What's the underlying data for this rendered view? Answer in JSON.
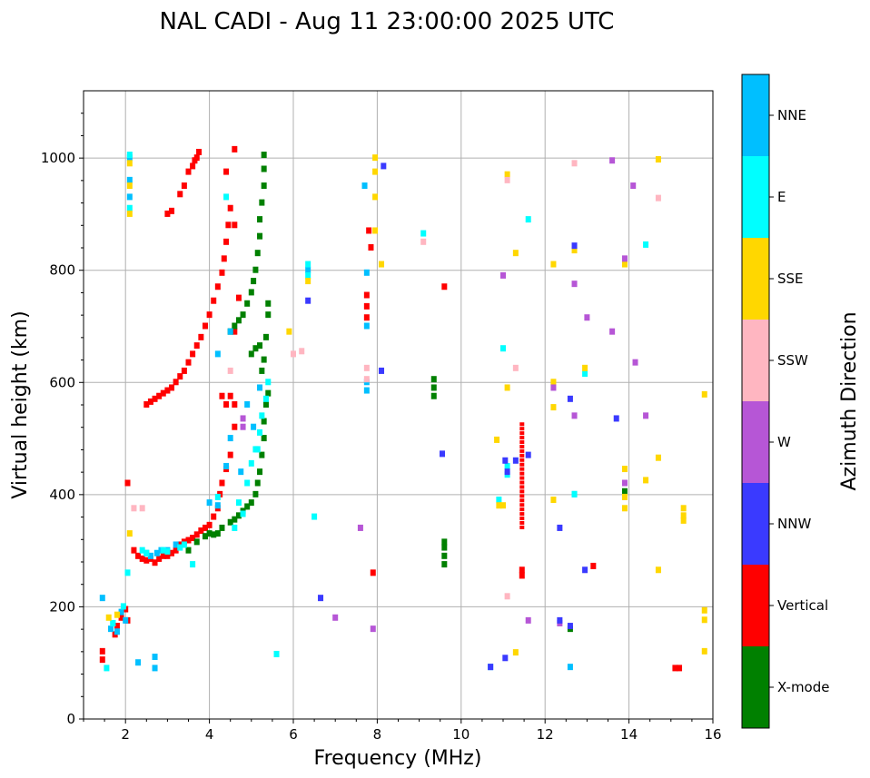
{
  "chart_data": {
    "type": "scatter",
    "title": "NAL CADI - Aug 11 23:00:00 2025 UTC",
    "xlabel": "Frequency (MHz)",
    "ylabel": "Virtual height (km)",
    "xlim": [
      1,
      16
    ],
    "ylim": [
      0,
      1120
    ],
    "xticks": [
      2,
      4,
      6,
      8,
      10,
      12,
      14,
      16
    ],
    "yticks": [
      0,
      200,
      400,
      600,
      800,
      1000
    ],
    "grid": true,
    "colorbar": {
      "label": "Azimuth Direction",
      "categories": [
        {
          "name": "X-mode",
          "color": "#008000"
        },
        {
          "name": "Vertical",
          "color": "#ff0000"
        },
        {
          "name": "NNW",
          "color": "#3a3aff"
        },
        {
          "name": "W",
          "color": "#b656d6"
        },
        {
          "name": "SSW",
          "color": "#ffb6c1"
        },
        {
          "name": "SSE",
          "color": "#ffd700"
        },
        {
          "name": "E",
          "color": "#00ffff"
        },
        {
          "name": "NNE",
          "color": "#00bfff"
        }
      ]
    },
    "series": [
      {
        "name": "Vertical",
        "points": [
          [
            1.45,
            120
          ],
          [
            1.45,
            105
          ],
          [
            1.75,
            150
          ],
          [
            1.8,
            165
          ],
          [
            1.9,
            180
          ],
          [
            2.0,
            195
          ],
          [
            2.05,
            175
          ],
          [
            2.2,
            300
          ],
          [
            2.3,
            290
          ],
          [
            2.4,
            285
          ],
          [
            2.5,
            282
          ],
          [
            2.6,
            285
          ],
          [
            2.7,
            278
          ],
          [
            2.8,
            285
          ],
          [
            2.9,
            290
          ],
          [
            3.0,
            290
          ],
          [
            3.1,
            295
          ],
          [
            3.2,
            300
          ],
          [
            3.3,
            310
          ],
          [
            3.4,
            315
          ],
          [
            3.5,
            318
          ],
          [
            3.6,
            322
          ],
          [
            3.7,
            328
          ],
          [
            3.8,
            335
          ],
          [
            3.9,
            340
          ],
          [
            4.0,
            345
          ],
          [
            4.1,
            360
          ],
          [
            4.2,
            375
          ],
          [
            4.25,
            400
          ],
          [
            4.3,
            420
          ],
          [
            4.4,
            445
          ],
          [
            4.5,
            470
          ],
          [
            4.4,
            560
          ],
          [
            4.6,
            560
          ],
          [
            4.3,
            575
          ],
          [
            4.5,
            575
          ],
          [
            2.5,
            560
          ],
          [
            2.6,
            565
          ],
          [
            2.7,
            570
          ],
          [
            2.8,
            575
          ],
          [
            2.9,
            580
          ],
          [
            3.0,
            585
          ],
          [
            3.1,
            590
          ],
          [
            3.2,
            600
          ],
          [
            3.3,
            610
          ],
          [
            3.4,
            620
          ],
          [
            3.5,
            635
          ],
          [
            3.6,
            650
          ],
          [
            3.7,
            665
          ],
          [
            3.8,
            680
          ],
          [
            3.9,
            700
          ],
          [
            4.0,
            720
          ],
          [
            4.1,
            745
          ],
          [
            4.2,
            770
          ],
          [
            4.3,
            795
          ],
          [
            4.35,
            820
          ],
          [
            4.4,
            850
          ],
          [
            4.45,
            880
          ],
          [
            4.5,
            910
          ],
          [
            4.4,
            975
          ],
          [
            3.0,
            900
          ],
          [
            3.1,
            905
          ],
          [
            3.3,
            935
          ],
          [
            3.4,
            950
          ],
          [
            3.5,
            975
          ],
          [
            3.6,
            985
          ],
          [
            3.65,
            995
          ],
          [
            3.7,
            1000
          ],
          [
            3.75,
            1010
          ],
          [
            4.6,
            1015
          ],
          [
            4.6,
            520
          ],
          [
            4.6,
            690
          ],
          [
            4.7,
            750
          ],
          [
            4.6,
            880
          ],
          [
            7.75,
            715
          ],
          [
            7.75,
            735
          ],
          [
            7.75,
            755
          ],
          [
            7.8,
            870
          ],
          [
            7.85,
            840
          ],
          [
            7.9,
            260
          ],
          [
            9.6,
            770
          ],
          [
            11.45,
            255
          ],
          [
            11.45,
            265
          ],
          [
            15.1,
            90
          ],
          [
            15.2,
            90
          ],
          [
            13.15,
            272
          ],
          [
            2.05,
            420
          ]
        ]
      },
      {
        "name": "X-mode",
        "points": [
          [
            3.5,
            300
          ],
          [
            3.7,
            315
          ],
          [
            3.9,
            325
          ],
          [
            4.0,
            330
          ],
          [
            4.1,
            328
          ],
          [
            4.2,
            330
          ],
          [
            4.3,
            340
          ],
          [
            4.5,
            350
          ],
          [
            4.6,
            355
          ],
          [
            4.7,
            362
          ],
          [
            4.8,
            370
          ],
          [
            4.9,
            378
          ],
          [
            5.0,
            385
          ],
          [
            5.1,
            400
          ],
          [
            5.15,
            420
          ],
          [
            5.2,
            440
          ],
          [
            5.25,
            470
          ],
          [
            5.3,
            500
          ],
          [
            5.3,
            530
          ],
          [
            5.35,
            560
          ],
          [
            5.4,
            580
          ],
          [
            5.25,
            620
          ],
          [
            5.3,
            640
          ],
          [
            5.35,
            680
          ],
          [
            5.0,
            650
          ],
          [
            5.1,
            660
          ],
          [
            5.2,
            665
          ],
          [
            4.5,
            690
          ],
          [
            4.6,
            700
          ],
          [
            4.7,
            710
          ],
          [
            4.8,
            720
          ],
          [
            4.9,
            740
          ],
          [
            5.0,
            760
          ],
          [
            5.05,
            780
          ],
          [
            5.1,
            800
          ],
          [
            5.15,
            830
          ],
          [
            5.2,
            860
          ],
          [
            5.2,
            890
          ],
          [
            5.25,
            920
          ],
          [
            5.3,
            950
          ],
          [
            5.3,
            980
          ],
          [
            5.3,
            1005
          ],
          [
            9.35,
            575
          ],
          [
            9.35,
            590
          ],
          [
            9.35,
            605
          ],
          [
            9.6,
            275
          ],
          [
            9.6,
            290
          ],
          [
            9.6,
            305
          ],
          [
            9.6,
            315
          ],
          [
            12.6,
            160
          ],
          [
            13.9,
            405
          ],
          [
            5.4,
            740
          ],
          [
            5.4,
            720
          ]
        ]
      },
      {
        "name": "NNE",
        "points": [
          [
            1.45,
            215
          ],
          [
            1.65,
            160
          ],
          [
            1.7,
            170
          ],
          [
            1.8,
            155
          ],
          [
            1.9,
            190
          ],
          [
            2.0,
            175
          ],
          [
            2.3,
            100
          ],
          [
            2.7,
            110
          ],
          [
            2.7,
            90
          ],
          [
            2.5,
            295
          ],
          [
            2.6,
            290
          ],
          [
            2.75,
            295
          ],
          [
            2.85,
            300
          ],
          [
            3.0,
            300
          ],
          [
            3.2,
            310
          ],
          [
            4.0,
            385
          ],
          [
            4.2,
            380
          ],
          [
            4.4,
            450
          ],
          [
            4.5,
            500
          ],
          [
            4.9,
            560
          ],
          [
            5.05,
            520
          ],
          [
            5.2,
            590
          ],
          [
            4.75,
            440
          ],
          [
            2.1,
            930
          ],
          [
            2.1,
            960
          ],
          [
            2.1,
            1000
          ],
          [
            7.75,
            600
          ],
          [
            7.75,
            585
          ],
          [
            7.75,
            700
          ],
          [
            7.75,
            795
          ],
          [
            7.7,
            950
          ],
          [
            6.35,
            800
          ],
          [
            4.2,
            650
          ],
          [
            4.5,
            690
          ],
          [
            10.7,
            92
          ],
          [
            12.6,
            92
          ],
          [
            12.7,
            400
          ]
        ]
      },
      {
        "name": "E",
        "points": [
          [
            1.55,
            90
          ],
          [
            1.7,
            170
          ],
          [
            1.95,
            200
          ],
          [
            2.05,
            260
          ],
          [
            2.4,
            300
          ],
          [
            2.5,
            295
          ],
          [
            2.9,
            300
          ],
          [
            3.0,
            298
          ],
          [
            3.3,
            305
          ],
          [
            3.4,
            310
          ],
          [
            3.6,
            275
          ],
          [
            4.2,
            395
          ],
          [
            4.6,
            340
          ],
          [
            4.7,
            385
          ],
          [
            4.8,
            365
          ],
          [
            4.9,
            420
          ],
          [
            5.0,
            455
          ],
          [
            5.1,
            480
          ],
          [
            5.2,
            510
          ],
          [
            5.25,
            540
          ],
          [
            5.35,
            570
          ],
          [
            5.15,
            480
          ],
          [
            5.4,
            600
          ],
          [
            2.1,
            1005
          ],
          [
            2.1,
            910
          ],
          [
            4.4,
            930
          ],
          [
            6.35,
            810
          ],
          [
            6.35,
            790
          ],
          [
            9.1,
            865
          ],
          [
            10.9,
            390
          ],
          [
            11.0,
            660
          ],
          [
            11.1,
            450
          ],
          [
            11.1,
            435
          ],
          [
            11.6,
            890
          ],
          [
            12.7,
            400
          ],
          [
            12.95,
            615
          ],
          [
            14.4,
            845
          ],
          [
            6.5,
            360
          ],
          [
            5.6,
            115
          ]
        ]
      },
      {
        "name": "SSE",
        "points": [
          [
            1.6,
            180
          ],
          [
            1.8,
            185
          ],
          [
            2.1,
            330
          ],
          [
            2.1,
            900
          ],
          [
            2.1,
            950
          ],
          [
            2.1,
            990
          ],
          [
            6.35,
            780
          ],
          [
            5.9,
            690
          ],
          [
            7.95,
            870
          ],
          [
            7.95,
            930
          ],
          [
            7.95,
            1000
          ],
          [
            7.95,
            975
          ],
          [
            8.1,
            810
          ],
          [
            10.9,
            380
          ],
          [
            11.0,
            380
          ],
          [
            11.1,
            590
          ],
          [
            11.1,
            970
          ],
          [
            11.3,
            830
          ],
          [
            11.3,
            118
          ],
          [
            12.2,
            600
          ],
          [
            12.2,
            555
          ],
          [
            12.2,
            390
          ],
          [
            12.2,
            810
          ],
          [
            12.7,
            835
          ],
          [
            12.95,
            625
          ],
          [
            13.9,
            445
          ],
          [
            13.9,
            395
          ],
          [
            13.9,
            375
          ],
          [
            13.9,
            810
          ],
          [
            14.4,
            425
          ],
          [
            14.7,
            465
          ],
          [
            14.7,
            265
          ],
          [
            14.7,
            997
          ],
          [
            15.3,
            375
          ],
          [
            15.3,
            362
          ],
          [
            15.3,
            353
          ],
          [
            15.8,
            193
          ],
          [
            15.8,
            176
          ],
          [
            15.8,
            120
          ],
          [
            15.8,
            578
          ],
          [
            10.85,
            497
          ]
        ]
      },
      {
        "name": "SSW",
        "points": [
          [
            2.2,
            375
          ],
          [
            2.4,
            375
          ],
          [
            6.0,
            650
          ],
          [
            6.2,
            655
          ],
          [
            7.75,
            625
          ],
          [
            7.75,
            605
          ],
          [
            9.1,
            850
          ],
          [
            11.1,
            960
          ],
          [
            11.3,
            625
          ],
          [
            11.1,
            218
          ],
          [
            12.7,
            990
          ],
          [
            14.7,
            928
          ],
          [
            4.5,
            620
          ]
        ]
      },
      {
        "name": "W",
        "points": [
          [
            4.8,
            535
          ],
          [
            4.8,
            520
          ],
          [
            7.0,
            180
          ],
          [
            7.6,
            340
          ],
          [
            7.9,
            160
          ],
          [
            11.0,
            790
          ],
          [
            11.6,
            175
          ],
          [
            12.35,
            170
          ],
          [
            12.7,
            540
          ],
          [
            12.7,
            775
          ],
          [
            13.0,
            715
          ],
          [
            13.6,
            690
          ],
          [
            13.6,
            995
          ],
          [
            13.9,
            420
          ],
          [
            13.9,
            820
          ],
          [
            14.1,
            950
          ],
          [
            14.15,
            635
          ],
          [
            14.4,
            540
          ],
          [
            12.2,
            590
          ]
        ]
      },
      {
        "name": "NNW",
        "points": [
          [
            6.35,
            745
          ],
          [
            6.65,
            215
          ],
          [
            8.15,
            985
          ],
          [
            8.1,
            620
          ],
          [
            9.55,
            472
          ],
          [
            10.7,
            92
          ],
          [
            11.05,
            460
          ],
          [
            11.1,
            440
          ],
          [
            11.3,
            460
          ],
          [
            11.6,
            470
          ],
          [
            12.35,
            175
          ],
          [
            12.35,
            340
          ],
          [
            12.6,
            570
          ],
          [
            12.7,
            843
          ],
          [
            12.95,
            265
          ],
          [
            12.6,
            165
          ],
          [
            13.7,
            535
          ],
          [
            11.05,
            108
          ]
        ]
      }
    ],
    "column_segments": [
      {
        "name": "Vertical",
        "x": 11.45,
        "y0": 340,
        "y1": 530
      }
    ]
  }
}
